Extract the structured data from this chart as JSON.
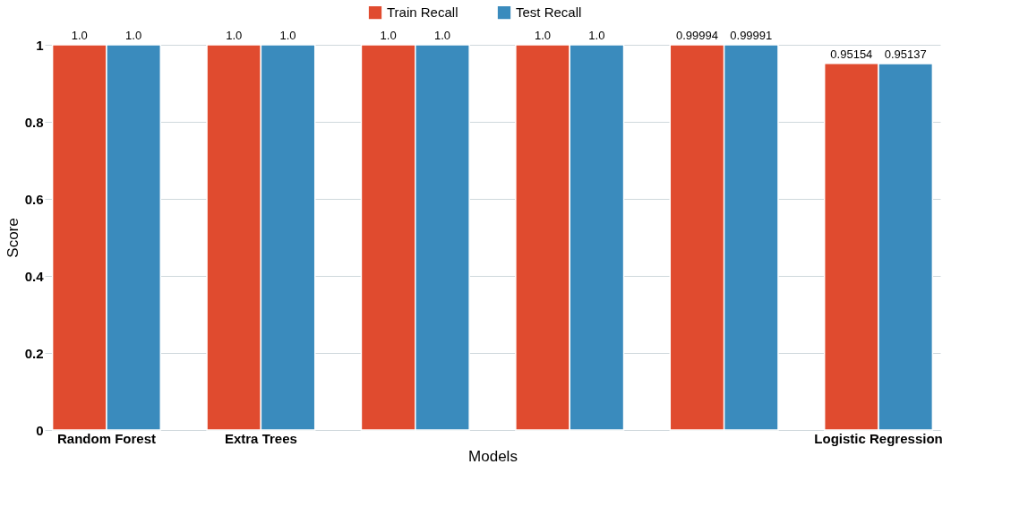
{
  "chart_data": {
    "type": "bar",
    "xlabel": "Models",
    "ylabel": "Score",
    "categories": [
      "Random Forest",
      "Extra Trees",
      null,
      null,
      null,
      "Logistic Regression"
    ],
    "series": [
      {
        "name": "Train Recall",
        "color": "#e04b2f",
        "values": [
          1,
          1,
          1,
          1,
          0.99994,
          0.95154
        ],
        "value_labels": [
          "1.0",
          "1.0",
          "1.0",
          "1.0",
          "0.99994",
          "0.95154"
        ]
      },
      {
        "name": "Test Recall",
        "color": "#3a8bbd",
        "values": [
          1,
          1,
          1,
          1,
          0.99991,
          0.95137
        ],
        "value_labels": [
          "1.0",
          "1.0",
          "1.0",
          "1.0",
          "0.99991",
          "0.95137"
        ]
      }
    ],
    "ylim": [
      0,
      1
    ],
    "yticks": [
      0,
      0.2,
      0.4,
      0.6,
      0.8,
      1
    ],
    "grid": "y",
    "legend": "top"
  }
}
